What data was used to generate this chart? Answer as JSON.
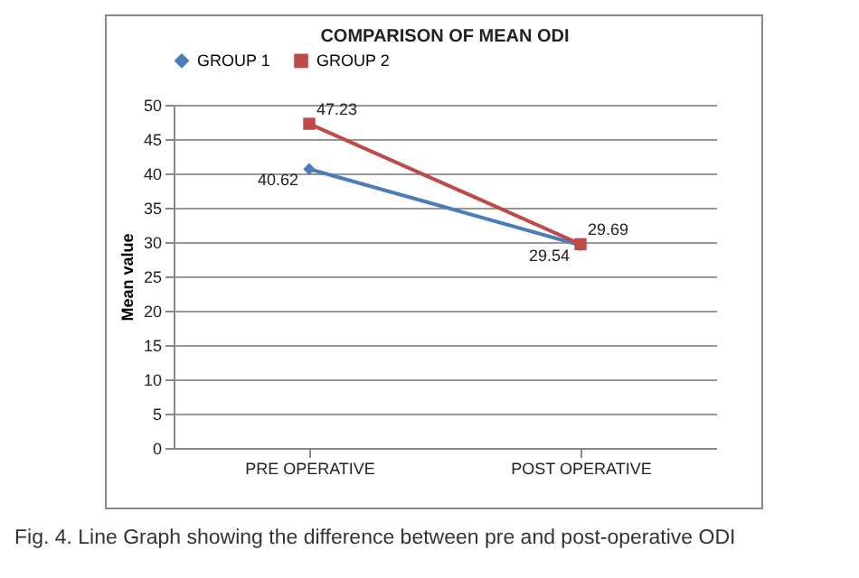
{
  "chart_data": {
    "type": "line",
    "title": "COMPARISON OF MEAN ODI",
    "ylabel": "Mean value",
    "categories": [
      "PRE OPERATIVE",
      "POST OPERATIVE"
    ],
    "series": [
      {
        "name": "GROUP 1",
        "color": "#4a7ebb",
        "marker": "diamond",
        "values": [
          40.62,
          29.54
        ]
      },
      {
        "name": "GROUP 2",
        "color": "#be4b48",
        "marker": "square",
        "values": [
          47.23,
          29.69
        ]
      }
    ],
    "ylim": [
      0,
      50
    ],
    "yticks": [
      0,
      5,
      10,
      15,
      20,
      25,
      30,
      35,
      40,
      45,
      50
    ],
    "grid": "y",
    "legend": "top",
    "data_labels": true,
    "line_style": "solid",
    "annotations": [
      "Fig. 4. Line Graph showing the difference between pre and post-operative ODI"
    ]
  }
}
